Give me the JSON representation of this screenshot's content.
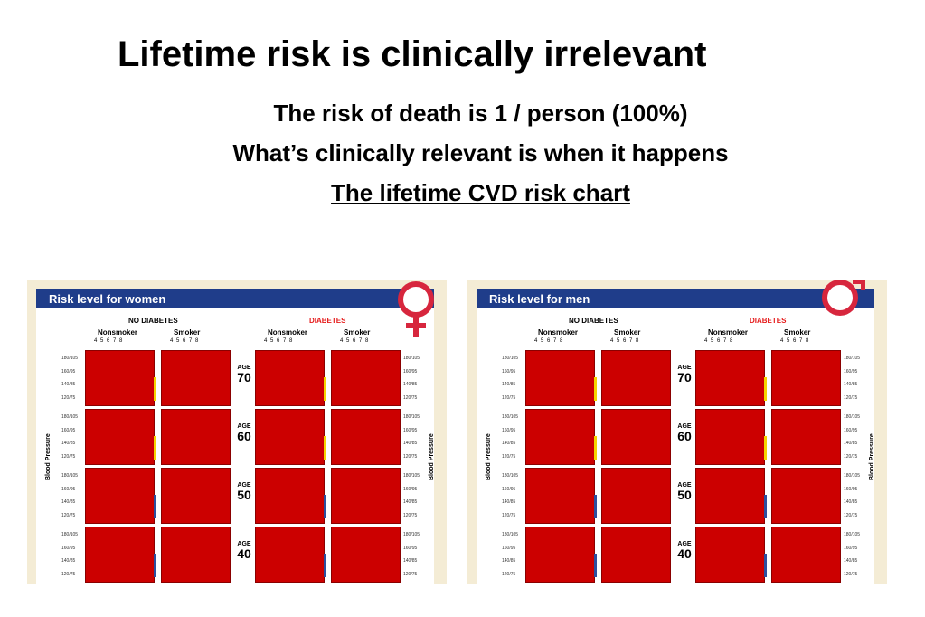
{
  "slide": {
    "title": "Lifetime risk is clinically irrelevant",
    "line1": "The risk of death is 1 / person (100%)",
    "line2": "What’s clinically relevant is when it happens",
    "line3": "The lifetime CVD risk chart"
  },
  "panels": [
    {
      "heading_prefix": "Risk level for ",
      "heading_subject": "women",
      "symbol": "female-symbol-icon",
      "no_diabetes": "NO DIABETES",
      "diabetes": "DIABETES",
      "nonsmoker": "Nonsmoker",
      "smoker": "Smoker",
      "cholesterol_ticks": "4 5 6 7 8",
      "age_label": "AGE",
      "ages": [
        "70",
        "60",
        "50",
        "40"
      ],
      "bp_axis": "Blood Pressure",
      "bp_values": [
        "180/105",
        "160/95",
        "140/85",
        "120/75"
      ]
    },
    {
      "heading_prefix": "Risk level for ",
      "heading_subject": "men",
      "symbol": "male-symbol-icon",
      "no_diabetes": "NO DIABETES",
      "diabetes": "DIABETES",
      "nonsmoker": "Nonsmoker",
      "smoker": "Smoker",
      "cholesterol_ticks": "4 5 6 7 8",
      "age_label": "AGE",
      "ages": [
        "70",
        "60",
        "50",
        "40"
      ],
      "bp_axis": "Blood Pressure",
      "bp_values": [
        "180/105",
        "160/95",
        "140/85",
        "120/75"
      ]
    }
  ],
  "colors": {
    "header_bg": "#1f3d8a",
    "risk_red": "#cc0000",
    "symbol_red": "#d7263d",
    "panel_bg": "#f4ecd5",
    "edge_yellow": "#f5d400",
    "edge_blue": "#2d4f9e"
  }
}
